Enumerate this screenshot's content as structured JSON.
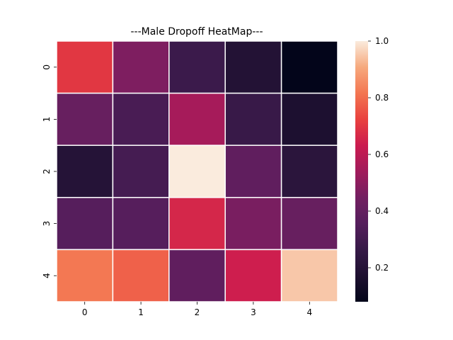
{
  "chart_data": {
    "type": "heatmap",
    "title": "---Male Dropoff HeatMap---",
    "xlabel": "",
    "ylabel": "",
    "x_categories": [
      "0",
      "1",
      "2",
      "3",
      "4"
    ],
    "y_categories": [
      "0",
      "1",
      "2",
      "3",
      "4"
    ],
    "values": [
      [
        0.7,
        0.47,
        0.28,
        0.19,
        0.08
      ],
      [
        0.41,
        0.32,
        0.55,
        0.27,
        0.17
      ],
      [
        0.2,
        0.31,
        1.0,
        0.39,
        0.22
      ],
      [
        0.36,
        0.36,
        0.66,
        0.46,
        0.41
      ],
      [
        0.82,
        0.78,
        0.39,
        0.64,
        0.95
      ]
    ],
    "colorbar": {
      "min": 0.08,
      "max": 1.0,
      "ticks": [
        0.2,
        0.4,
        0.6,
        0.8,
        1.0
      ],
      "tick_labels": [
        "0.2",
        "0.4",
        "0.6",
        "0.8",
        "1.0"
      ],
      "colormap": "rocket"
    },
    "cell_separator_color": "#ffffff",
    "grid": false,
    "legend": "colorbar-right"
  }
}
